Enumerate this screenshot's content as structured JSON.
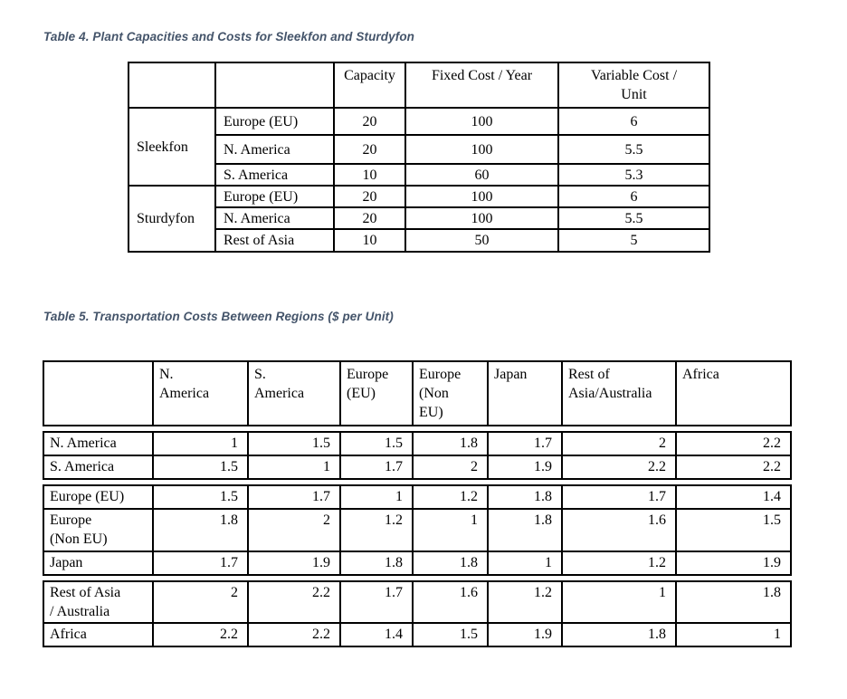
{
  "colors": {
    "caption_text": "#44546A",
    "table_border": "#000000",
    "background": "#ffffff"
  },
  "table4": {
    "caption": "Table 4. Plant Capacities and Costs for Sleekfon and Sturdyfon",
    "headers": [
      "",
      "",
      "Capacity",
      "Fixed Cost / Year",
      "Variable Cost /\nUnit"
    ],
    "groups": [
      {
        "name": "Sleekfon",
        "rows": [
          {
            "region": "Europe (EU)",
            "capacity": "20",
            "fixed_cost": "100",
            "variable_cost": "6"
          },
          {
            "region": "N. America",
            "capacity": "20",
            "fixed_cost": "100",
            "variable_cost": "5.5"
          },
          {
            "region": "S. America",
            "capacity": "10",
            "fixed_cost": "60",
            "variable_cost": "5.3"
          }
        ]
      },
      {
        "name": "Sturdyfon",
        "rows": [
          {
            "region": "Europe (EU)",
            "capacity": "20",
            "fixed_cost": "100",
            "variable_cost": "6"
          },
          {
            "region": "N. America",
            "capacity": "20",
            "fixed_cost": "100",
            "variable_cost": "5.5"
          },
          {
            "region": "Rest of Asia",
            "capacity": "10",
            "fixed_cost": "50",
            "variable_cost": "5"
          }
        ]
      }
    ]
  },
  "table5": {
    "caption": "Table 5. Transportation Costs Between Regions ($ per Unit)",
    "col_headers": [
      "",
      "N.\nAmerica",
      "S.\nAmerica",
      "Europe\n(EU)",
      "Europe\n(Non\nEU)",
      "Japan",
      "Rest of\nAsia/Australia",
      "Africa"
    ],
    "sections": [
      {
        "rows": [
          {
            "label": "N. America",
            "values": [
              "1",
              "1.5",
              "1.5",
              "1.8",
              "1.7",
              "2",
              "2.2"
            ]
          },
          {
            "label": "S. America",
            "values": [
              "1.5",
              "1",
              "1.7",
              "2",
              "1.9",
              "2.2",
              "2.2"
            ]
          }
        ]
      },
      {
        "rows": [
          {
            "label": "Europe (EU)",
            "values": [
              "1.5",
              "1.7",
              "1",
              "1.2",
              "1.8",
              "1.7",
              "1.4"
            ]
          },
          {
            "label": "Europe\n(Non EU)",
            "values": [
              "1.8",
              "2",
              "1.2",
              "1",
              "1.8",
              "1.6",
              "1.5"
            ]
          },
          {
            "label": "Japan",
            "values": [
              "1.7",
              "1.9",
              "1.8",
              "1.8",
              "1",
              "1.2",
              "1.9"
            ]
          }
        ]
      },
      {
        "rows": [
          {
            "label": "Rest of Asia\n/ Australia",
            "values": [
              "2",
              "2.2",
              "1.7",
              "1.6",
              "1.2",
              "1",
              "1.8"
            ]
          },
          {
            "label": "Africa",
            "values": [
              "2.2",
              "2.2",
              "1.4",
              "1.5",
              "1.9",
              "1.8",
              "1"
            ]
          }
        ]
      }
    ]
  }
}
